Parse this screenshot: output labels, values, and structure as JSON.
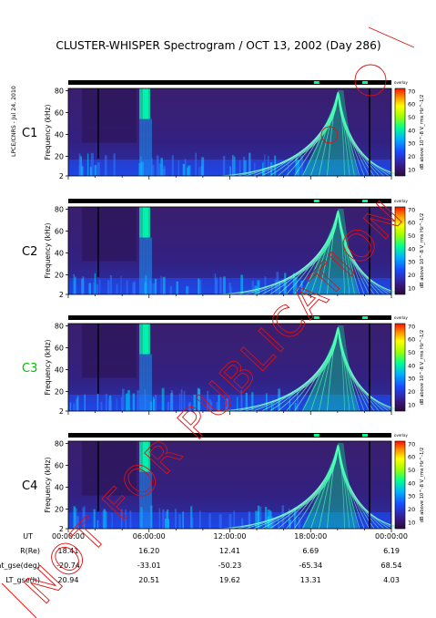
{
  "title": "CLUSTER-WHISPER Spectrogram / OCT 13, 2002 (Day 286)",
  "credit": "LPCE/CNRS - Jul 24, 2010",
  "watermark": "NOT FOR PUBLICATION",
  "colors": {
    "background": "#ffffff",
    "axis": "#000000",
    "watermark": "#e01010",
    "c3_label": "#00c000"
  },
  "chart_data": [
    {
      "type": "heatmap",
      "panel": "C1",
      "ylabel": "Frequency (kHz)",
      "y_ticks": [
        "2",
        "20",
        "40",
        "60",
        "80"
      ],
      "ylim": [
        2,
        82
      ],
      "xlim": [
        "00:00:00",
        "24:00:00"
      ],
      "colorbar": {
        "label": "dB above 10^-8 V_rms Hz^-1/2",
        "ticks": [
          "10",
          "20",
          "30",
          "40",
          "50",
          "60",
          "70"
        ],
        "range": [
          5,
          72
        ]
      },
      "status_label": "overlay"
    },
    {
      "type": "heatmap",
      "panel": "C2",
      "ylabel": "Frequency (kHz)",
      "y_ticks": [
        "2",
        "20",
        "40",
        "60",
        "80"
      ],
      "ylim": [
        2,
        82
      ],
      "xlim": [
        "00:00:00",
        "24:00:00"
      ],
      "colorbar": {
        "label": "dB above 10^-8 V_rms Hz^-1/2",
        "ticks": [
          "10",
          "20",
          "30",
          "40",
          "50",
          "60",
          "70"
        ],
        "range": [
          5,
          72
        ]
      },
      "status_label": "overlay"
    },
    {
      "type": "heatmap",
      "panel": "C3",
      "ylabel": "Frequency (kHz)",
      "y_ticks": [
        "2",
        "20",
        "40",
        "60",
        "80"
      ],
      "ylim": [
        2,
        82
      ],
      "xlim": [
        "00:00:00",
        "24:00:00"
      ],
      "colorbar": {
        "label": "dB above 10^-8 V_rms Hz^-1/2",
        "ticks": [
          "10",
          "20",
          "30",
          "40",
          "50",
          "60",
          "70"
        ],
        "range": [
          5,
          72
        ]
      },
      "status_label": "overlay"
    },
    {
      "type": "heatmap",
      "panel": "C4",
      "ylabel": "Frequency (kHz)",
      "y_ticks": [
        "2",
        "20",
        "40",
        "60",
        "80"
      ],
      "ylim": [
        2,
        82
      ],
      "xlim": [
        "00:00:00",
        "24:00:00"
      ],
      "colorbar": {
        "label": "dB above 10^-8 V_rms Hz^-1/2",
        "ticks": [
          "10",
          "20",
          "30",
          "40",
          "50",
          "60",
          "70"
        ],
        "range": [
          5,
          72
        ]
      },
      "status_label": "overlay",
      "x_ticks": [
        "00:00:00",
        "06:00:00",
        "12:00:00",
        "18:00:00",
        "00:00:00"
      ]
    }
  ],
  "ephemeris": {
    "columns": [
      "00:00:00",
      "06:00:00",
      "12:00:00",
      "18:00:00",
      "00:00:00"
    ],
    "rows": [
      {
        "label": "UT",
        "values": [
          "",
          "",
          "",
          "",
          ""
        ]
      },
      {
        "label": "R(Re)",
        "values": [
          "18.41",
          "16.20",
          "12.41",
          "6.69",
          "6.19"
        ]
      },
      {
        "label": "Lat_gse(deg)",
        "values": [
          "-20.74",
          "-33.01",
          "-50.23",
          "-65.34",
          "68.54"
        ]
      },
      {
        "label": "LT_gse(h)",
        "values": [
          "20.94",
          "20.51",
          "19.62",
          "13.31",
          "4.03"
        ]
      }
    ]
  }
}
